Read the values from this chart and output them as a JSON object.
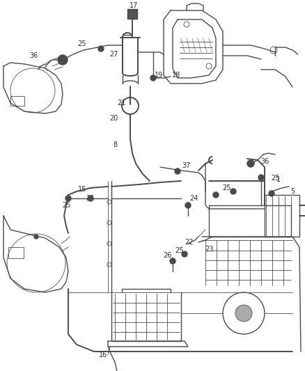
{
  "bg_color": "#f8f8f8",
  "line_color": "#4a4a4a",
  "text_color": "#2a2a2a",
  "fig_width": 4.38,
  "fig_height": 5.33,
  "dpi": 100
}
